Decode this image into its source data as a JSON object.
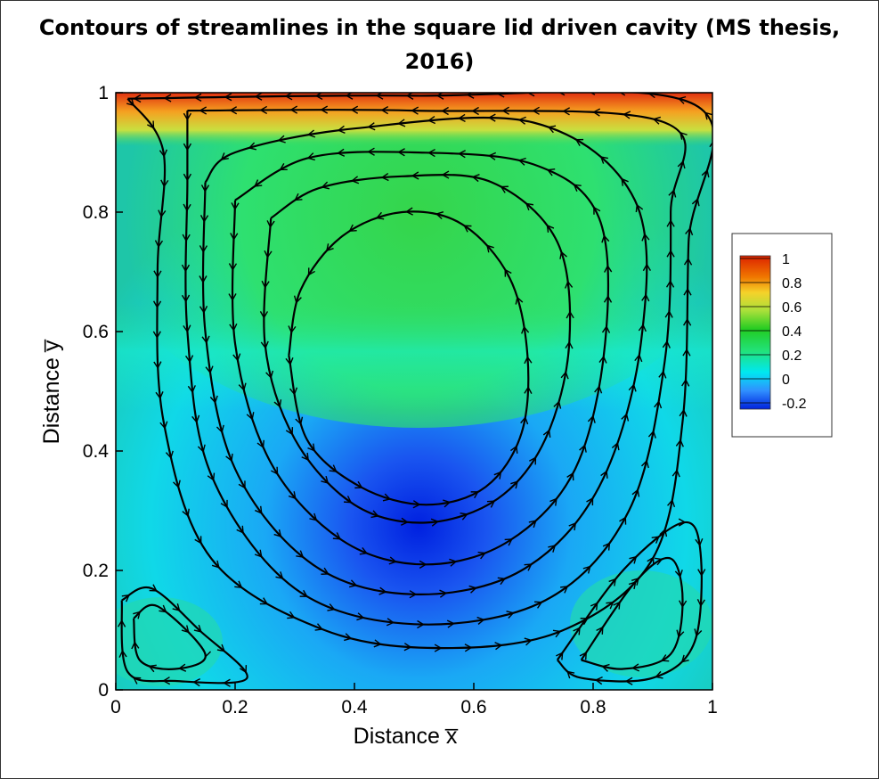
{
  "chart_data": {
    "type": "heatmap",
    "title": "Contours of streamlines in the square lid driven cavity (MS thesis, 2016)",
    "xlabel": "Distance x̅",
    "ylabel": "Distance y̅",
    "xlim": [
      0,
      1
    ],
    "ylim": [
      0,
      1
    ],
    "x_ticks": [
      "0",
      "0.2",
      "0.4",
      "0.6",
      "0.8",
      "1"
    ],
    "y_ticks": [
      "0",
      "0.2",
      "0.4",
      "0.6",
      "0.8",
      "1"
    ],
    "colorbar": {
      "placement": "right",
      "levels": [
        "1",
        "0.8",
        "0.6",
        "0.4",
        "0.2",
        "0",
        "-0.2"
      ],
      "colors": [
        "#dd2200",
        "#f07800",
        "#f5d22a",
        "#a8e03a",
        "#22cc22",
        "#22e27a",
        "#00e8f0",
        "#3090ff",
        "#0022dd"
      ]
    },
    "primary_vortex_center": [
      0.53,
      0.56
    ],
    "streamlines": [
      {
        "name": "primary-1",
        "points": [
          [
            0.02,
            0.99
          ],
          [
            0.08,
            0.9
          ],
          [
            0.07,
            0.7
          ],
          [
            0.08,
            0.45
          ],
          [
            0.16,
            0.22
          ],
          [
            0.35,
            0.1
          ],
          [
            0.55,
            0.07
          ],
          [
            0.75,
            0.1
          ],
          [
            0.9,
            0.22
          ],
          [
            0.95,
            0.45
          ],
          [
            0.96,
            0.75
          ],
          [
            0.97,
            0.98
          ],
          [
            0.5,
            0.995
          ],
          [
            0.02,
            0.99
          ]
        ]
      },
      {
        "name": "primary-2",
        "points": [
          [
            0.12,
            0.97
          ],
          [
            0.12,
            0.85
          ],
          [
            0.12,
            0.6
          ],
          [
            0.16,
            0.36
          ],
          [
            0.3,
            0.17
          ],
          [
            0.5,
            0.11
          ],
          [
            0.72,
            0.15
          ],
          [
            0.86,
            0.3
          ],
          [
            0.92,
            0.55
          ],
          [
            0.93,
            0.8
          ],
          [
            0.92,
            0.95
          ],
          [
            0.5,
            0.97
          ],
          [
            0.12,
            0.97
          ]
        ]
      },
      {
        "name": "primary-3",
        "points": [
          [
            0.15,
            0.85
          ],
          [
            0.15,
            0.6
          ],
          [
            0.2,
            0.37
          ],
          [
            0.33,
            0.21
          ],
          [
            0.5,
            0.16
          ],
          [
            0.68,
            0.2
          ],
          [
            0.81,
            0.34
          ],
          [
            0.88,
            0.58
          ],
          [
            0.87,
            0.82
          ],
          [
            0.7,
            0.95
          ],
          [
            0.4,
            0.94
          ],
          [
            0.2,
            0.9
          ],
          [
            0.15,
            0.85
          ]
        ]
      },
      {
        "name": "primary-4",
        "points": [
          [
            0.2,
            0.82
          ],
          [
            0.2,
            0.58
          ],
          [
            0.26,
            0.38
          ],
          [
            0.38,
            0.25
          ],
          [
            0.52,
            0.21
          ],
          [
            0.66,
            0.25
          ],
          [
            0.77,
            0.37
          ],
          [
            0.82,
            0.58
          ],
          [
            0.81,
            0.79
          ],
          [
            0.7,
            0.88
          ],
          [
            0.5,
            0.9
          ],
          [
            0.32,
            0.89
          ],
          [
            0.2,
            0.82
          ]
        ]
      },
      {
        "name": "primary-5",
        "points": [
          [
            0.26,
            0.79
          ],
          [
            0.25,
            0.58
          ],
          [
            0.3,
            0.42
          ],
          [
            0.4,
            0.31
          ],
          [
            0.52,
            0.28
          ],
          [
            0.64,
            0.32
          ],
          [
            0.72,
            0.42
          ],
          [
            0.76,
            0.58
          ],
          [
            0.74,
            0.75
          ],
          [
            0.63,
            0.85
          ],
          [
            0.48,
            0.86
          ],
          [
            0.34,
            0.84
          ],
          [
            0.26,
            0.79
          ]
        ]
      },
      {
        "name": "primary-6",
        "points": [
          [
            0.29,
            0.56
          ],
          [
            0.32,
            0.42
          ],
          [
            0.41,
            0.34
          ],
          [
            0.52,
            0.31
          ],
          [
            0.62,
            0.34
          ],
          [
            0.68,
            0.43
          ],
          [
            0.69,
            0.56
          ],
          [
            0.66,
            0.69
          ],
          [
            0.58,
            0.78
          ],
          [
            0.48,
            0.8
          ],
          [
            0.38,
            0.76
          ],
          [
            0.31,
            0.67
          ],
          [
            0.29,
            0.56
          ]
        ]
      },
      {
        "name": "corner-bl-outer",
        "points": [
          [
            0.01,
            0.15
          ],
          [
            0.06,
            0.17
          ],
          [
            0.14,
            0.1
          ],
          [
            0.22,
            0.02
          ],
          [
            0.1,
            0.015
          ],
          [
            0.02,
            0.03
          ],
          [
            0.01,
            0.15
          ]
        ]
      },
      {
        "name": "corner-bl-inner",
        "points": [
          [
            0.03,
            0.12
          ],
          [
            0.07,
            0.14
          ],
          [
            0.15,
            0.06
          ],
          [
            0.1,
            0.035
          ],
          [
            0.04,
            0.05
          ],
          [
            0.03,
            0.12
          ]
        ]
      },
      {
        "name": "corner-br-outer",
        "points": [
          [
            0.74,
            0.05
          ],
          [
            0.85,
            0.2
          ],
          [
            0.95,
            0.28
          ],
          [
            0.98,
            0.23
          ],
          [
            0.97,
            0.08
          ],
          [
            0.9,
            0.02
          ],
          [
            0.78,
            0.02
          ],
          [
            0.74,
            0.05
          ]
        ]
      },
      {
        "name": "corner-br-inner",
        "points": [
          [
            0.78,
            0.05
          ],
          [
            0.87,
            0.18
          ],
          [
            0.93,
            0.22
          ],
          [
            0.95,
            0.15
          ],
          [
            0.93,
            0.06
          ],
          [
            0.85,
            0.035
          ],
          [
            0.78,
            0.05
          ]
        ]
      }
    ]
  }
}
